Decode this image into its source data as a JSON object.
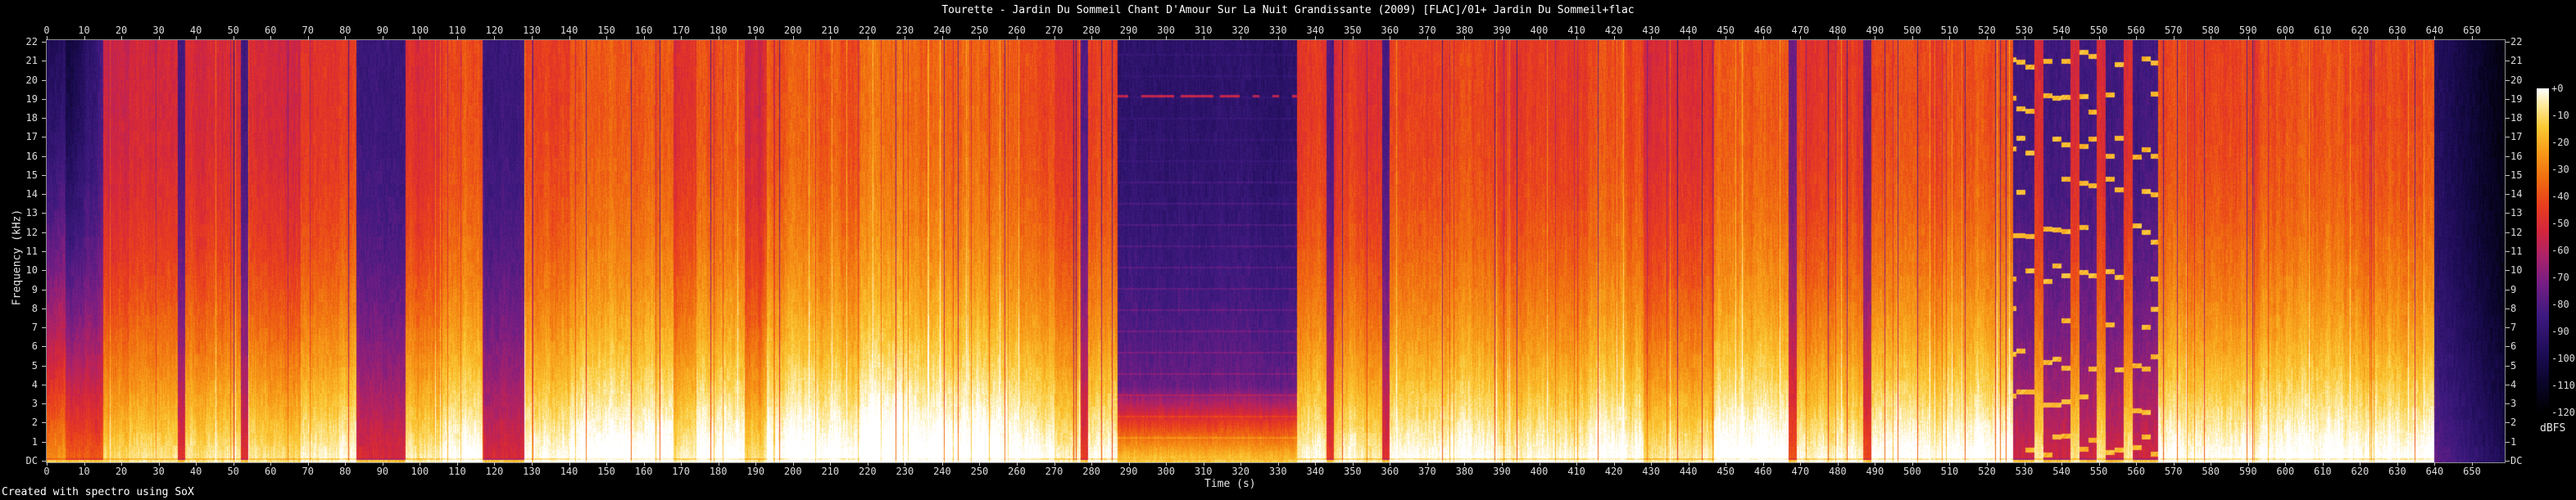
{
  "title": "Tourette - Jardin Du Sommeil Chant D'Amour Sur La Nuit Grandissante (2009) [FLAC]/01+ Jardin Du Sommeil+flac",
  "footer": "Created with spectro using SoX",
  "axes": {
    "x_label": "Time (s)",
    "y_label": "Frequency (kHz)",
    "time_ticks": [
      0,
      10,
      20,
      30,
      40,
      50,
      60,
      70,
      80,
      90,
      100,
      110,
      120,
      130,
      140,
      150,
      160,
      170,
      180,
      190,
      200,
      210,
      220,
      230,
      240,
      250,
      260,
      270,
      280,
      290,
      300,
      310,
      320,
      330,
      340,
      350,
      360,
      370,
      380,
      390,
      400,
      410,
      420,
      430,
      440,
      450,
      460,
      470,
      480,
      490,
      500,
      510,
      520,
      530,
      540,
      550,
      560,
      570,
      580,
      590,
      600,
      610,
      620,
      630,
      640,
      650
    ],
    "freq_ticks": [
      "22",
      "21",
      "20",
      "19",
      "18",
      "17",
      "16",
      "15",
      "14",
      "13",
      "12",
      "11",
      "10",
      "9",
      "8",
      "7",
      "6",
      "5",
      "4",
      "3",
      "2",
      "1",
      "DC"
    ],
    "colorbar": {
      "label": "dBFS",
      "ticks": [
        "+0",
        "-10",
        "-20",
        "-30",
        "-40",
        "-50",
        "-60",
        "-70",
        "-80",
        "-90",
        "-100",
        "-110",
        "-120"
      ]
    }
  },
  "chart_data": {
    "type": "heatmap",
    "subtype": "audio-spectrogram",
    "duration_s": 659,
    "freq_range_khz": [
      0,
      22
    ],
    "db_range": [
      0,
      -120
    ],
    "legend_position": "right",
    "grid": false,
    "palette": [
      [
        0.0,
        "#000000"
      ],
      [
        0.08,
        "#080424"
      ],
      [
        0.18,
        "#1c0c54"
      ],
      [
        0.3,
        "#3e1a80"
      ],
      [
        0.4,
        "#761e84"
      ],
      [
        0.48,
        "#aa226a"
      ],
      [
        0.56,
        "#d4263c"
      ],
      [
        0.64,
        "#e93e1e"
      ],
      [
        0.72,
        "#f06c10"
      ],
      [
        0.8,
        "#f79918"
      ],
      [
        0.88,
        "#fbc832"
      ],
      [
        0.95,
        "#fdeba0"
      ],
      [
        1.0,
        "#ffffff"
      ]
    ],
    "segment_fields": [
      "start_s",
      "end_s",
      "level_0to1",
      "style"
    ],
    "segments": [
      [
        0,
        5,
        0.42,
        "intro"
      ],
      [
        5,
        15,
        0.32,
        "intro"
      ],
      [
        15,
        22,
        0.52,
        ""
      ],
      [
        22,
        35,
        0.56,
        ""
      ],
      [
        35,
        37,
        0.3,
        "purple"
      ],
      [
        37,
        52,
        0.56,
        ""
      ],
      [
        52,
        54,
        0.3,
        "purple"
      ],
      [
        54,
        68,
        0.55,
        ""
      ],
      [
        68,
        83,
        0.62,
        ""
      ],
      [
        83,
        96,
        0.28,
        "purple"
      ],
      [
        96,
        106,
        0.58,
        ""
      ],
      [
        106,
        117,
        0.66,
        ""
      ],
      [
        117,
        128,
        0.28,
        "purple"
      ],
      [
        128,
        140,
        0.62,
        ""
      ],
      [
        140,
        168,
        0.68,
        ""
      ],
      [
        168,
        174,
        0.58,
        ""
      ],
      [
        174,
        187,
        0.68,
        ""
      ],
      [
        187,
        193,
        0.56,
        ""
      ],
      [
        193,
        218,
        0.68,
        ""
      ],
      [
        218,
        232,
        0.72,
        ""
      ],
      [
        232,
        258,
        0.7,
        ""
      ],
      [
        258,
        270,
        0.66,
        ""
      ],
      [
        270,
        277,
        0.6,
        ""
      ],
      [
        277,
        279,
        0.34,
        "purple"
      ],
      [
        279,
        287,
        0.64,
        ""
      ],
      [
        287,
        335,
        0.24,
        "quiet"
      ],
      [
        335,
        343,
        0.62,
        ""
      ],
      [
        343,
        345,
        0.34,
        "purple"
      ],
      [
        345,
        358,
        0.6,
        ""
      ],
      [
        358,
        360,
        0.32,
        "purple"
      ],
      [
        360,
        385,
        0.64,
        ""
      ],
      [
        385,
        413,
        0.62,
        ""
      ],
      [
        413,
        428,
        0.66,
        ""
      ],
      [
        428,
        447,
        0.58,
        ""
      ],
      [
        447,
        467,
        0.68,
        ""
      ],
      [
        467,
        469,
        0.38,
        "purple"
      ],
      [
        469,
        487,
        0.62,
        ""
      ],
      [
        487,
        489,
        0.36,
        "purple"
      ],
      [
        489,
        527,
        0.66,
        ""
      ],
      [
        527,
        566,
        0.58,
        "dotted"
      ],
      [
        566,
        640,
        0.66,
        ""
      ],
      [
        640,
        659,
        0.2,
        "fade"
      ]
    ]
  }
}
